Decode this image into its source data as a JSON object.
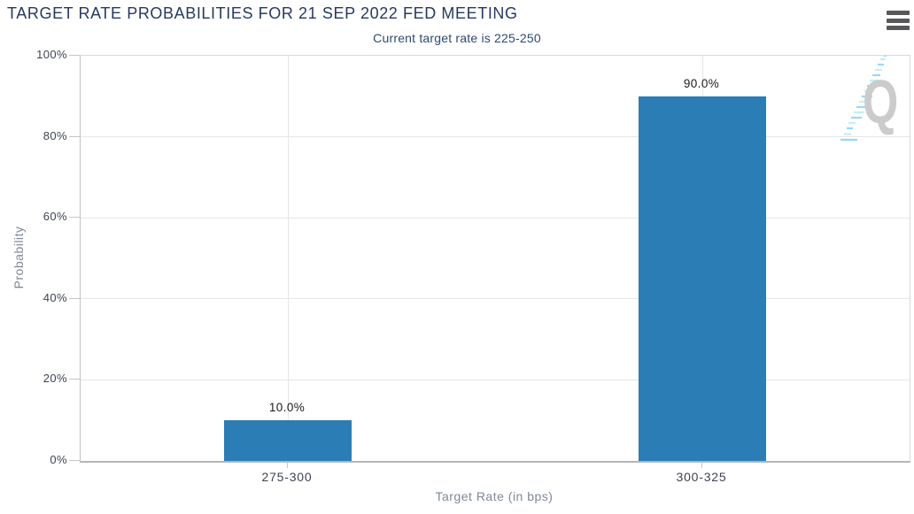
{
  "menu": {
    "icon": "hamburger-icon"
  },
  "watermark": {
    "letter": "Q"
  },
  "chart_data": {
    "type": "bar",
    "title": "TARGET RATE PROBABILITIES FOR 21 SEP 2022 FED MEETING",
    "subtitle": "Current target rate is 225-250",
    "categories": [
      "275-300",
      "300-325"
    ],
    "values": [
      10.0,
      90.0
    ],
    "value_labels": [
      "10.0%",
      "90.0%"
    ],
    "xlabel": "Target Rate (in bps)",
    "ylabel": "Probability",
    "ylim": [
      0,
      100
    ],
    "yticks": [
      0,
      20,
      40,
      60,
      80,
      100
    ],
    "ytick_labels": [
      "0%",
      "20%",
      "40%",
      "60%",
      "80%",
      "100%"
    ],
    "grid": true,
    "legend": false,
    "bar_color": "#2a7db5"
  },
  "colors": {
    "title": "#26395f",
    "subtitle": "#2c4a72",
    "tick_label": "#3d4350",
    "axis_title": "#7e8898",
    "data_label": "#1b1b1b",
    "grid_line": "#e6e6e6",
    "axis_line": "#c2c2c2",
    "bar": "#2a7db5",
    "menu_icon": "#58585a",
    "watermark_q": "#cbcbcb",
    "watermark_swoosh": "#9bd7f2"
  }
}
